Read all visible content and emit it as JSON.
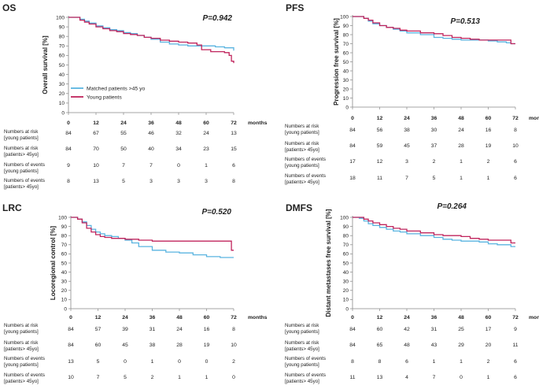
{
  "chart_data": [
    {
      "type": "line",
      "panel": "OS",
      "title": "OS",
      "pvalue": "P=0.942",
      "ylabel": "Overall survival [%]",
      "xlabel": "months",
      "xlim": [
        0,
        72
      ],
      "ylim": [
        0,
        100
      ],
      "xticks": [
        0,
        12,
        24,
        36,
        48,
        60,
        72
      ],
      "yticks": [
        0,
        10,
        20,
        30,
        40,
        50,
        60,
        70,
        80,
        90,
        100
      ],
      "legend": {
        "placement": "bottom-left",
        "entries": [
          "Matched patients >45 yo",
          "Young patients"
        ]
      },
      "series": [
        {
          "name": "Matched patients >45 yo",
          "color": "#5ab4e0",
          "x": [
            0,
            3,
            5,
            7,
            9,
            12,
            15,
            18,
            21,
            24,
            27,
            30,
            33,
            36,
            40,
            44,
            48,
            52,
            56,
            60,
            64,
            68,
            72
          ],
          "y": [
            100,
            100,
            98,
            96,
            94,
            91,
            89,
            87,
            86,
            84,
            83,
            81,
            79,
            77,
            74,
            72,
            71,
            70,
            70,
            70,
            69,
            68,
            65
          ]
        },
        {
          "name": "Young patients",
          "color": "#c0245c",
          "x": [
            0,
            3,
            5,
            7,
            9,
            12,
            15,
            18,
            21,
            24,
            27,
            30,
            33,
            36,
            40,
            44,
            48,
            52,
            56,
            58,
            62,
            66,
            68,
            70,
            71,
            72
          ],
          "y": [
            100,
            100,
            97,
            95,
            93,
            90,
            88,
            86,
            85,
            83,
            82,
            81,
            79,
            78,
            76,
            75,
            74,
            73,
            71,
            66,
            64,
            64,
            63,
            60,
            54,
            52
          ]
        }
      ],
      "risk_table": [
        {
          "label": "Numbers at risk [young patients]",
          "values": [
            "84",
            "67",
            "55",
            "46",
            "32",
            "24",
            "13"
          ]
        },
        {
          "label": "Numbers at risk [patients> 45yo]",
          "values": [
            "84",
            "70",
            "50",
            "40",
            "34",
            "23",
            "15"
          ]
        },
        {
          "label": "Numbers of events [young patients]",
          "values": [
            "9",
            "10",
            "7",
            "7",
            "0",
            "1",
            "6"
          ]
        },
        {
          "label": "Numbers of events [patients> 45yo]",
          "values": [
            "8",
            "13",
            "5",
            "3",
            "3",
            "3",
            "8"
          ]
        }
      ]
    },
    {
      "type": "line",
      "panel": "PFS",
      "title": "PFS",
      "pvalue": "P=0.513",
      "ylabel": "Progression free survival [%]",
      "xlabel": "months",
      "xlim": [
        0,
        72
      ],
      "ylim": [
        0,
        100
      ],
      "xticks": [
        0,
        12,
        24,
        36,
        48,
        60,
        72
      ],
      "yticks": [
        0,
        10,
        20,
        30,
        40,
        50,
        60,
        70,
        80,
        90,
        100
      ],
      "series": [
        {
          "name": "Matched patients >45 yo",
          "color": "#5ab4e0",
          "x": [
            0,
            3,
            5,
            7,
            9,
            12,
            15,
            18,
            21,
            24,
            30,
            36,
            40,
            44,
            48,
            52,
            56,
            60,
            64,
            68,
            70,
            72
          ],
          "y": [
            100,
            100,
            98,
            95,
            92,
            90,
            88,
            86,
            84,
            82,
            80,
            77,
            76,
            75,
            74,
            74,
            74,
            73,
            72,
            71,
            70,
            70
          ]
        },
        {
          "name": "Young patients",
          "color": "#c0245c",
          "x": [
            0,
            3,
            5,
            7,
            9,
            12,
            15,
            18,
            21,
            24,
            30,
            36,
            40,
            44,
            48,
            52,
            56,
            60,
            64,
            68,
            70,
            72
          ],
          "y": [
            100,
            100,
            98,
            96,
            93,
            90,
            88,
            87,
            85,
            84,
            82,
            81,
            79,
            77,
            76,
            75,
            74,
            74,
            74,
            74,
            70,
            70
          ]
        }
      ],
      "risk_table": [
        {
          "label": "Numbers at risk [young patients]",
          "values": [
            "84",
            "56",
            "38",
            "30",
            "24",
            "16",
            "8"
          ]
        },
        {
          "label": "Numbers at risk [patients> 45yo]",
          "values": [
            "84",
            "59",
            "45",
            "37",
            "28",
            "19",
            "10"
          ]
        },
        {
          "label": "Numbers of events [young patients]",
          "values": [
            "17",
            "12",
            "3",
            "2",
            "1",
            "2",
            "6"
          ]
        },
        {
          "label": "Numbers of events [patients> 45yo]",
          "values": [
            "18",
            "11",
            "7",
            "5",
            "1",
            "1",
            "6"
          ]
        }
      ]
    },
    {
      "type": "line",
      "panel": "LRC",
      "title": "LRC",
      "pvalue": "P=0.520",
      "ylabel": "Locoregional control [%]",
      "xlabel": "months",
      "xlim": [
        0,
        72
      ],
      "ylim": [
        0,
        100
      ],
      "xticks": [
        0,
        12,
        24,
        36,
        48,
        60,
        72
      ],
      "yticks": [
        0,
        10,
        20,
        30,
        40,
        50,
        60,
        70,
        80,
        90,
        100
      ],
      "series": [
        {
          "name": "Matched patients >45 yo",
          "color": "#5ab4e0",
          "x": [
            0,
            3,
            5,
            7,
            9,
            11,
            13,
            15,
            18,
            21,
            24,
            27,
            30,
            36,
            42,
            48,
            54,
            60,
            66,
            72
          ],
          "y": [
            100,
            98,
            95,
            91,
            87,
            84,
            82,
            80,
            79,
            77,
            75,
            72,
            68,
            64,
            62,
            61,
            59,
            57,
            56,
            56
          ]
        },
        {
          "name": "Young patients",
          "color": "#c0245c",
          "x": [
            0,
            3,
            5,
            7,
            9,
            11,
            13,
            15,
            18,
            21,
            24,
            30,
            36,
            42,
            48,
            54,
            60,
            66,
            70,
            71,
            72
          ],
          "y": [
            100,
            98,
            94,
            88,
            84,
            81,
            79,
            78,
            77,
            77,
            76,
            75,
            74,
            74,
            74,
            74,
            74,
            74,
            74,
            64,
            64
          ]
        }
      ],
      "risk_table": [
        {
          "label": "Numbers at risk [young patients]",
          "values": [
            "84",
            "57",
            "39",
            "31",
            "24",
            "16",
            "8"
          ]
        },
        {
          "label": "Numbers at risk [patients> 45yo]",
          "values": [
            "84",
            "60",
            "45",
            "38",
            "28",
            "19",
            "10"
          ]
        },
        {
          "label": "Numbers of events [young patients]",
          "values": [
            "13",
            "5",
            "0",
            "1",
            "0",
            "0",
            "2"
          ]
        },
        {
          "label": "Numbers of events [patients> 45yo]",
          "values": [
            "10",
            "7",
            "5",
            "2",
            "1",
            "1",
            "0"
          ]
        }
      ]
    },
    {
      "type": "line",
      "panel": "DMFS",
      "title": "DMFS",
      "pvalue": "P=0.264",
      "ylabel": "Distant metastases free survival [%]",
      "xlabel": "months",
      "xlim": [
        0,
        72
      ],
      "ylim": [
        0,
        100
      ],
      "xticks": [
        0,
        12,
        24,
        36,
        48,
        60,
        72
      ],
      "yticks": [
        0,
        10,
        20,
        30,
        40,
        50,
        60,
        70,
        80,
        90,
        100
      ],
      "series": [
        {
          "name": "Matched patients >45 yo",
          "color": "#5ab4e0",
          "x": [
            0,
            3,
            5,
            7,
            9,
            12,
            15,
            18,
            21,
            24,
            30,
            36,
            40,
            44,
            48,
            52,
            56,
            60,
            64,
            68,
            70,
            72
          ],
          "y": [
            100,
            99,
            96,
            93,
            91,
            89,
            87,
            85,
            84,
            82,
            80,
            78,
            76,
            75,
            74,
            74,
            73,
            71,
            70,
            70,
            68,
            68
          ]
        },
        {
          "name": "Young patients",
          "color": "#c0245c",
          "x": [
            0,
            3,
            5,
            7,
            9,
            12,
            15,
            18,
            21,
            24,
            30,
            36,
            40,
            44,
            48,
            52,
            56,
            60,
            64,
            68,
            70,
            72
          ],
          "y": [
            100,
            100,
            98,
            96,
            94,
            92,
            90,
            88,
            87,
            85,
            83,
            81,
            80,
            80,
            79,
            77,
            76,
            75,
            75,
            75,
            72,
            72
          ]
        }
      ],
      "risk_table": [
        {
          "label": "Numbers at risk [young patients]",
          "values": [
            "84",
            "60",
            "42",
            "31",
            "25",
            "17",
            "9"
          ]
        },
        {
          "label": "Numbers at risk [patients> 45yo]",
          "values": [
            "84",
            "65",
            "48",
            "43",
            "29",
            "20",
            "11"
          ]
        },
        {
          "label": "Numbers of events [young patients]",
          "values": [
            "8",
            "8",
            "6",
            "1",
            "1",
            "2",
            "6"
          ]
        },
        {
          "label": "Numbers of events [patients> 45yo]",
          "values": [
            "11",
            "13",
            "4",
            "7",
            "0",
            "1",
            "6"
          ]
        }
      ]
    }
  ]
}
